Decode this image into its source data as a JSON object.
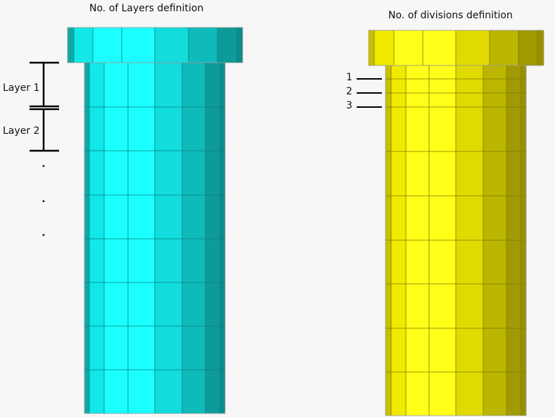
{
  "left_title": "No. of Layers definition",
  "right_title": "No. of divisions definition",
  "layer_labels": [
    "Layer 1",
    "Layer 2"
  ],
  "continuation_dots": [
    "•",
    "•",
    "•"
  ],
  "division_labels": [
    "1",
    "2",
    "3"
  ],
  "colors": {
    "cyan_strips": [
      "#10a8a8",
      "#12e8e8",
      "#1cffff",
      "#1cffff",
      "#12dcdc",
      "#0fbaba",
      "#0e9a9a",
      "#0c8c8c"
    ],
    "yellow_strips": [
      "#c8c000",
      "#f0ea00",
      "#ffff1a",
      "#ffff1a",
      "#e0da00",
      "#bcb600",
      "#a09a00",
      "#989200"
    ],
    "cyan_edge": "#0a7f7f",
    "yellow_edge": "#7d7800"
  }
}
